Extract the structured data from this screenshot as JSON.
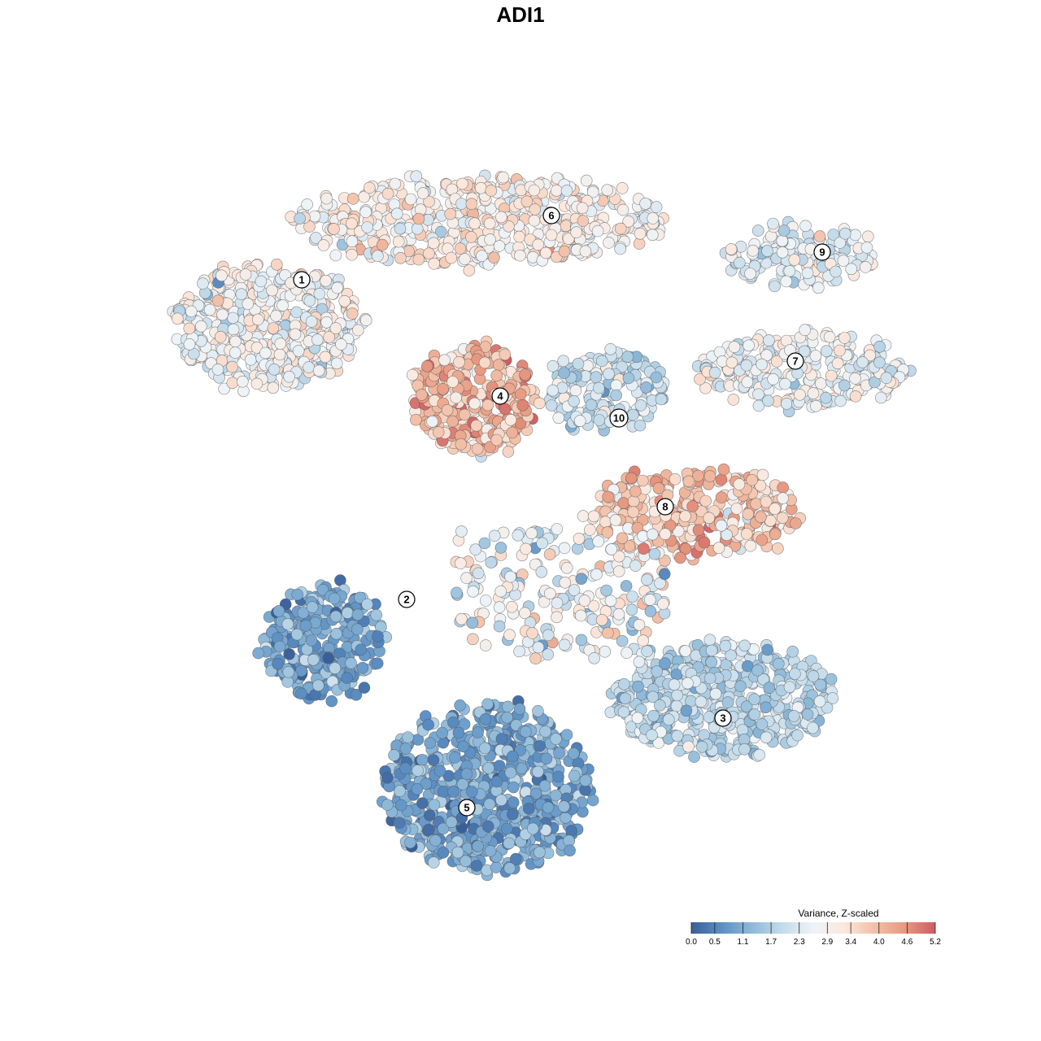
{
  "chart_data": {
    "type": "scatter",
    "title": "ADI1",
    "color_scale": {
      "title": "Variance, Z-scaled",
      "min": 0.0,
      "max": 5.2,
      "ticks": [
        "0.0",
        "0.5",
        "1.1",
        "1.7",
        "2.3",
        "2.9",
        "3.4",
        "4.0",
        "4.6",
        "5.2"
      ],
      "colors": [
        "#3a5f98",
        "#5b8fc4",
        "#8fbad9",
        "#c4dbea",
        "#eef3f7",
        "#fbe8dd",
        "#f2c0a8",
        "#e79880",
        "#cf5b62"
      ]
    },
    "axes_visible": false,
    "grid": false,
    "legend_position": "bottom-right",
    "clusters": [
      {
        "label": "1",
        "mean_value": 2.7
      },
      {
        "label": "2",
        "mean_value": 1.0
      },
      {
        "label": "3",
        "mean_value": 1.9
      },
      {
        "label": "4",
        "mean_value": 3.9
      },
      {
        "label": "5",
        "mean_value": 1.0
      },
      {
        "label": "6",
        "mean_value": 3.0
      },
      {
        "label": "7",
        "mean_value": 2.6
      },
      {
        "label": "8",
        "mean_value": 3.7
      },
      {
        "label": "9",
        "mean_value": 2.4
      },
      {
        "label": "10",
        "mean_value": 2.1
      }
    ]
  }
}
